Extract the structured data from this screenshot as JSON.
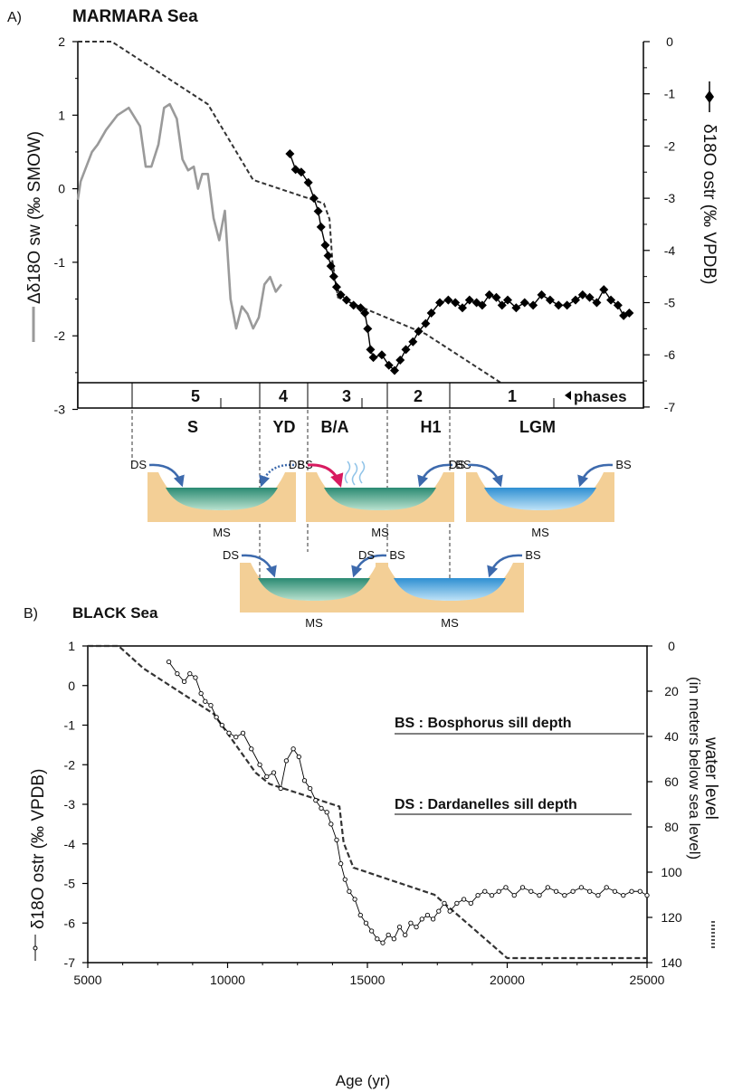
{
  "panel_a": {
    "label": "A)",
    "title": "MARMARA Sea",
    "left_axis_title": "Δδ18O sw (‰ SMOW)",
    "right_axis_title": "δ18O ostr (‰ VPDB)",
    "left_ticks": [
      "2",
      "1",
      "0",
      "-1",
      "-2",
      "-3"
    ],
    "right_ticks": [
      "0",
      "-1",
      "-2",
      "-3",
      "-4",
      "-5",
      "-6",
      "-7"
    ],
    "phase_numbers": [
      "5",
      "4",
      "3",
      "2",
      "1"
    ],
    "phases_label": "phases",
    "periods": [
      "S",
      "YD",
      "B/A",
      "H1",
      "LGM"
    ],
    "basin_labels": {
      "ds": "DS",
      "bs": "BS",
      "ms": "MS"
    }
  },
  "panel_b": {
    "label": "B)",
    "title": "BLACK Sea",
    "left_axis_title": "δ18O ostr (‰ VPDB)",
    "right_axis_title": "water level",
    "right_axis_subtitle": "(in meters below sea level)",
    "x_axis_title": "Age (yr)",
    "x_ticks": [
      "5000",
      "10000",
      "15000",
      "20000",
      "25000"
    ],
    "left_ticks": [
      "1",
      "0",
      "-1",
      "-2",
      "-3",
      "-4",
      "-5",
      "-6",
      "-7"
    ],
    "right_ticks": [
      "0",
      "20",
      "40",
      "60",
      "80",
      "100",
      "120",
      "140"
    ],
    "notes": {
      "bs": "BS : Bosphorus sill depth",
      "ds": "DS : Dardanelles sill depth"
    }
  },
  "colors": {
    "sea_level": "#333333",
    "delta_sw": "#9a9a9a",
    "ostracod": "#000000",
    "sill_wall": "#f3cf96",
    "water_green": "#2f8d76",
    "water_blue": "#3f9ed4",
    "arrow_blue": "#3d6aad",
    "arrow_pink": "#d81b60"
  },
  "chart_data": [
    {
      "type": "line",
      "title": "MARMARA Sea",
      "xlim": [
        5000,
        25000
      ],
      "y_left_label": "Δδ18O sw (‰ SMOW)",
      "y_left_lim": [
        -3,
        2
      ],
      "y_right_label": "δ18O ostr (‰ VPDB)",
      "y_right_lim": [
        -7,
        0
      ],
      "series": [
        {
          "axis": "right",
          "style": "dashed",
          "x": [
            5000,
            6200,
            9600,
            11200,
            13700,
            13900,
            14000,
            14200,
            17300,
            20000,
            25000
          ],
          "values": [
            0,
            0,
            -1.2,
            -2.65,
            -3.1,
            -3.4,
            -4.2,
            -4.9,
            -5.6,
            -6.55,
            -6.55
          ]
        },
        {
          "axis": "left",
          "x": [
            5000,
            5100,
            5300,
            5500,
            5700,
            6000,
            6400,
            6800,
            7200,
            7400,
            7600,
            7850,
            8050,
            8250,
            8500,
            8700,
            8900,
            9100,
            9250,
            9400,
            9600,
            9800,
            10000,
            10200,
            10400,
            10600,
            10800,
            11000,
            11200,
            11400,
            11600,
            11800,
            12000,
            12200
          ],
          "values": [
            -0.15,
            0.1,
            0.3,
            0.5,
            0.6,
            0.8,
            1.0,
            1.1,
            0.85,
            0.3,
            0.3,
            0.6,
            1.1,
            1.15,
            0.95,
            0.4,
            0.25,
            0.3,
            0.0,
            0.2,
            0.2,
            -0.4,
            -0.7,
            -0.3,
            -1.5,
            -1.9,
            -1.6,
            -1.7,
            -1.9,
            -1.75,
            -1.3,
            -1.2,
            -1.4,
            -1.3
          ]
        },
        {
          "axis": "right",
          "x": [
            12500,
            12700,
            12900,
            13150,
            13350,
            13500,
            13600,
            13750,
            13850,
            13950,
            14050,
            14150,
            14300,
            14500,
            14750,
            15000,
            15150,
            15250,
            15350,
            15450,
            15750,
            16000,
            16200,
            16400,
            16600,
            16850,
            17050,
            17300,
            17500,
            17800,
            18100,
            18350,
            18600,
            18850,
            19100,
            19300,
            19550,
            19800,
            20000,
            20200,
            20500,
            20800,
            21100,
            21400,
            21700,
            22000,
            22300,
            22600,
            22850,
            23100,
            23350,
            23600,
            23850,
            24100,
            24300,
            24500
          ],
          "values": [
            -2.15,
            -2.45,
            -2.5,
            -2.7,
            -3.0,
            -3.25,
            -3.55,
            -3.9,
            -4.1,
            -4.3,
            -4.5,
            -4.7,
            -4.85,
            -4.95,
            -5.05,
            -5.1,
            -5.2,
            -5.5,
            -5.9,
            -6.05,
            -6.0,
            -6.2,
            -6.3,
            -6.1,
            -5.9,
            -5.75,
            -5.55,
            -5.4,
            -5.2,
            -5.0,
            -4.95,
            -5.0,
            -5.1,
            -4.95,
            -5.0,
            -5.05,
            -4.85,
            -4.9,
            -5.05,
            -4.95,
            -5.1,
            -5.0,
            -5.05,
            -4.85,
            -4.95,
            -5.05,
            -5.05,
            -4.95,
            -4.85,
            -4.9,
            -5.0,
            -4.75,
            -4.95,
            -5.05,
            -5.25,
            -5.2
          ]
        }
      ]
    },
    {
      "type": "line",
      "title": "BLACK Sea",
      "xlabel": "Age (yr)",
      "xlim": [
        5000,
        25000
      ],
      "x_ticks": [
        5000,
        10000,
        15000,
        20000,
        25000
      ],
      "y_left_label": "δ18O ostr (‰ VPDB)",
      "y_left_lim": [
        -7,
        1
      ],
      "y_right_label": "water level (in meters below sea level)",
      "y_right_lim": [
        140,
        0
      ],
      "series": [
        {
          "axis": "right",
          "style": "dashed",
          "x": [
            5000,
            6100,
            7000,
            9500,
            11000,
            11500,
            14000,
            14150,
            14500,
            17400,
            20000,
            25000
          ],
          "values": [
            0,
            0,
            10,
            30,
            56,
            61,
            71,
            87,
            98,
            110,
            138,
            138
          ]
        },
        {
          "axis": "left",
          "x": [
            7900,
            8200,
            8450,
            8650,
            8850,
            9050,
            9200,
            9400,
            9600,
            9800,
            10050,
            10300,
            10550,
            10850,
            11150,
            11400,
            11650,
            11900,
            12100,
            12350,
            12550,
            12750,
            12950,
            13150,
            13350,
            13550,
            13700,
            13900,
            14050,
            14200,
            14350,
            14550,
            14750,
            14950,
            15150,
            15350,
            15550,
            15750,
            15950,
            16150,
            16350,
            16550,
            16750,
            16950,
            17150,
            17350,
            17550,
            17750,
            17950,
            18200,
            18450,
            18700,
            18950,
            19200,
            19450,
            19700,
            19950,
            20250,
            20550,
            20850,
            21150,
            21450,
            21750,
            22050,
            22350,
            22650,
            22950,
            23250,
            23550,
            23850,
            24150,
            24450,
            24750,
            25000
          ],
          "values": [
            0.6,
            0.3,
            0.1,
            0.3,
            0.2,
            -0.2,
            -0.4,
            -0.5,
            -0.8,
            -1.0,
            -1.2,
            -1.3,
            -1.2,
            -1.6,
            -2.0,
            -2.3,
            -2.2,
            -2.6,
            -1.9,
            -1.6,
            -1.8,
            -2.4,
            -2.6,
            -2.9,
            -3.1,
            -3.2,
            -3.5,
            -3.9,
            -4.5,
            -4.9,
            -5.2,
            -5.4,
            -5.8,
            -6.0,
            -6.2,
            -6.4,
            -6.5,
            -6.3,
            -6.4,
            -6.1,
            -6.3,
            -6.0,
            -6.1,
            -5.9,
            -5.8,
            -5.9,
            -5.7,
            -5.5,
            -5.7,
            -5.5,
            -5.4,
            -5.5,
            -5.3,
            -5.2,
            -5.3,
            -5.2,
            -5.1,
            -5.3,
            -5.1,
            -5.2,
            -5.3,
            -5.1,
            -5.2,
            -5.3,
            -5.2,
            -5.1,
            -5.2,
            -5.3,
            -5.1,
            -5.2,
            -5.3,
            -5.2,
            -5.2,
            -5.3
          ]
        }
      ]
    }
  ]
}
